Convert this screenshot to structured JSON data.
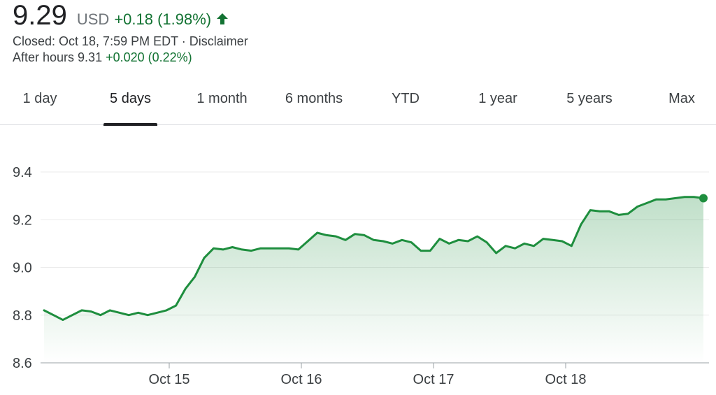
{
  "quote": {
    "price": "9.29",
    "currency": "USD",
    "change": "+0.18 (1.98%)",
    "arrow_icon": "arrow-up-icon",
    "closed_text": "Closed: Oct 18, 7:59 PM EDT · ",
    "disclaimer": "Disclaimer",
    "after_hours_label": "After hours 9.31 ",
    "after_hours_change": "+0.020 (0.22%)",
    "up_color": "#137333",
    "line_color": "#1e8e3e"
  },
  "tabs": [
    {
      "label": "1 day"
    },
    {
      "label": "5 days",
      "active": true
    },
    {
      "label": "1 month"
    },
    {
      "label": "6 months"
    },
    {
      "label": "YTD"
    },
    {
      "label": "1 year"
    },
    {
      "label": "5 years"
    },
    {
      "label": "Max"
    }
  ],
  "chart_data": {
    "type": "area",
    "ylim": [
      8.6,
      9.4
    ],
    "yticks": [
      "9.4",
      "9.2",
      "9.0",
      "8.8",
      "8.6"
    ],
    "ytick_values": [
      9.4,
      9.2,
      9.0,
      8.8,
      8.6
    ],
    "xticks": [
      "Oct 15",
      "Oct 16",
      "Oct 17",
      "Oct 18"
    ],
    "grid": true,
    "series": [
      {
        "values": [
          8.82,
          8.8,
          8.78,
          8.8,
          8.82,
          8.815,
          8.8,
          8.82,
          8.81,
          8.8,
          8.81,
          8.8,
          8.81,
          8.82,
          8.84,
          8.91,
          8.96,
          9.04,
          9.08,
          9.075,
          9.085,
          9.075,
          9.07,
          9.08,
          9.08,
          9.08,
          9.08,
          9.075,
          9.11,
          9.145,
          9.135,
          9.13,
          9.115,
          9.14,
          9.135,
          9.115,
          9.11,
          9.1,
          9.115,
          9.105,
          9.07,
          9.07,
          9.12,
          9.1,
          9.115,
          9.11,
          9.13,
          9.105,
          9.06,
          9.09,
          9.08,
          9.1,
          9.09,
          9.12,
          9.115,
          9.11,
          9.09,
          9.18,
          9.24,
          9.235,
          9.235,
          9.22,
          9.225,
          9.255,
          9.27,
          9.285,
          9.285,
          9.29,
          9.295,
          9.295,
          9.29
        ]
      }
    ]
  }
}
